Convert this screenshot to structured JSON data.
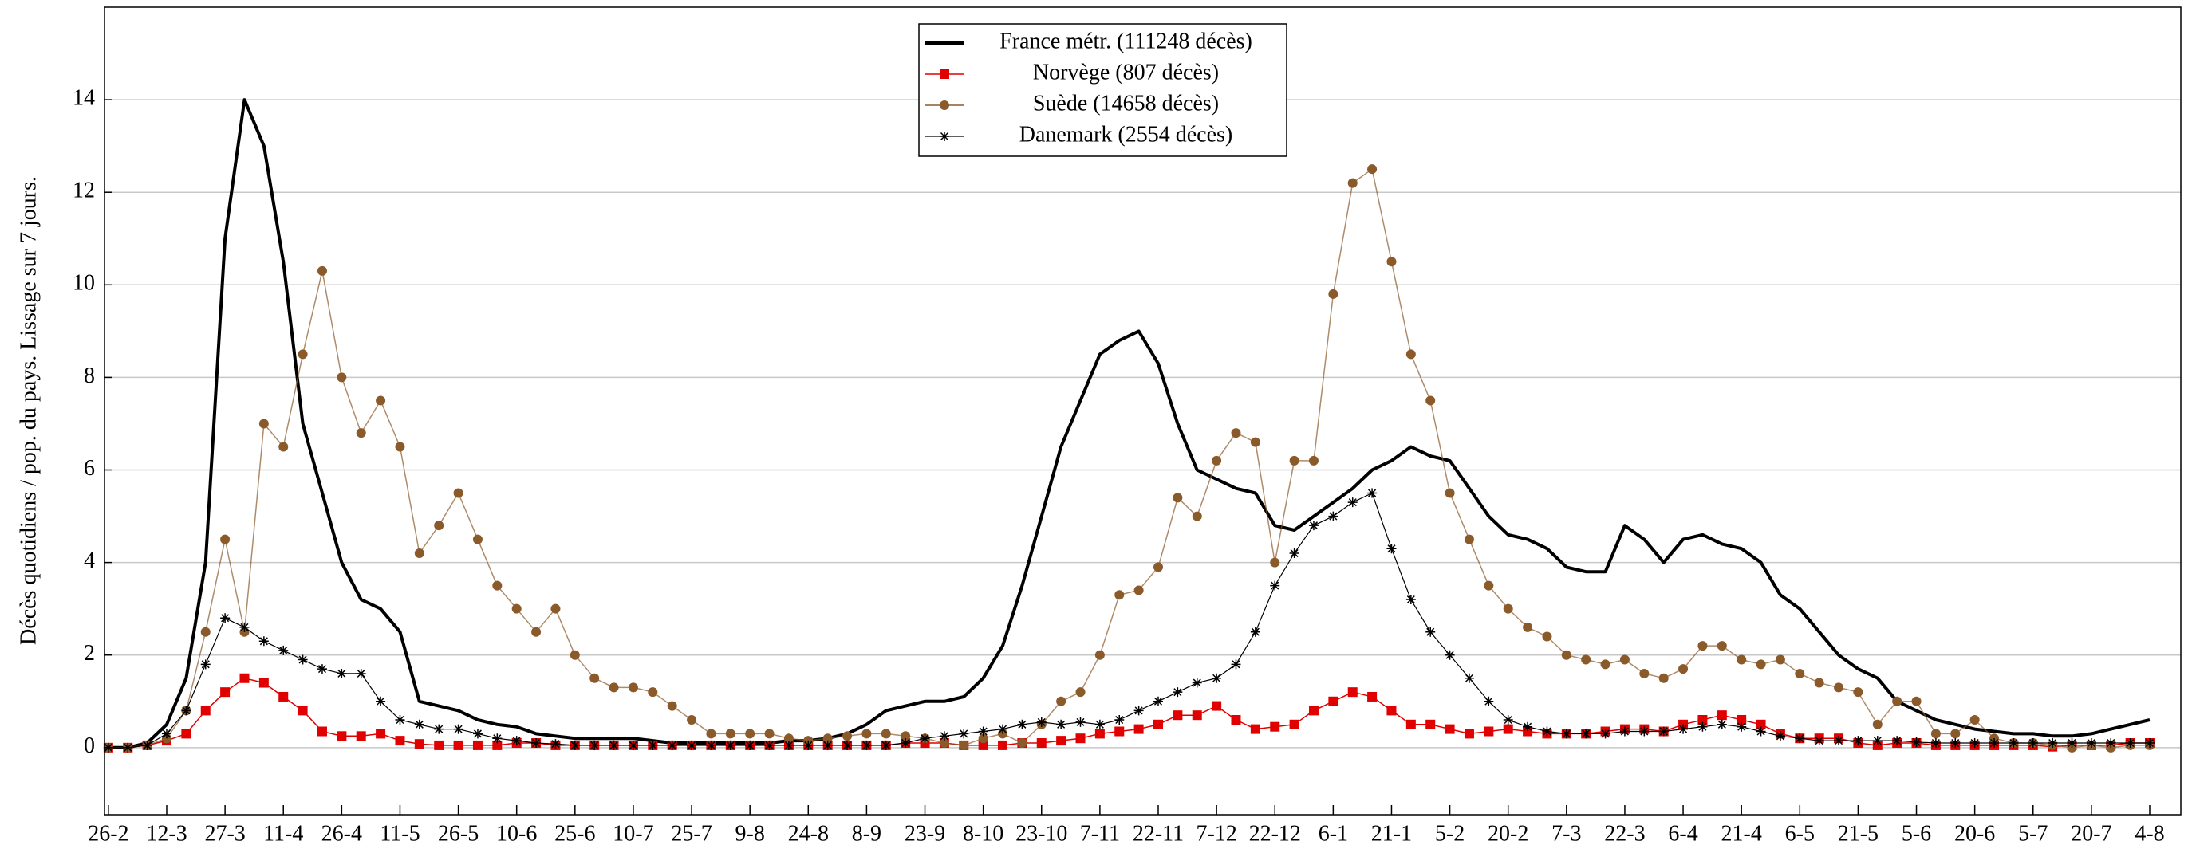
{
  "chart_data": {
    "type": "line",
    "y_label": "Décès quotidiens / pop. du pays. Lissage sur 7 jours.",
    "xlim": [
      -1,
      533
    ],
    "ylim": [
      -1.45,
      16
    ],
    "yticks": [
      0,
      2,
      4,
      6,
      8,
      10,
      12,
      14
    ],
    "xticks": [
      {
        "value": 0,
        "label": "26-2"
      },
      {
        "value": 15,
        "label": "12-3"
      },
      {
        "value": 30,
        "label": "27-3"
      },
      {
        "value": 45,
        "label": "11-4"
      },
      {
        "value": 60,
        "label": "26-4"
      },
      {
        "value": 75,
        "label": "11-5"
      },
      {
        "value": 90,
        "label": "26-5"
      },
      {
        "value": 105,
        "label": "10-6"
      },
      {
        "value": 120,
        "label": "25-6"
      },
      {
        "value": 135,
        "label": "10-7"
      },
      {
        "value": 150,
        "label": "25-7"
      },
      {
        "value": 165,
        "label": "9-8"
      },
      {
        "value": 180,
        "label": "24-8"
      },
      {
        "value": 195,
        "label": "8-9"
      },
      {
        "value": 210,
        "label": "23-9"
      },
      {
        "value": 225,
        "label": "8-10"
      },
      {
        "value": 240,
        "label": "23-10"
      },
      {
        "value": 255,
        "label": "7-11"
      },
      {
        "value": 270,
        "label": "22-11"
      },
      {
        "value": 285,
        "label": "7-12"
      },
      {
        "value": 300,
        "label": "22-12"
      },
      {
        "value": 315,
        "label": "6-1"
      },
      {
        "value": 330,
        "label": "21-1"
      },
      {
        "value": 345,
        "label": "5-2"
      },
      {
        "value": 360,
        "label": "20-2"
      },
      {
        "value": 375,
        "label": "7-3"
      },
      {
        "value": 390,
        "label": "22-3"
      },
      {
        "value": 405,
        "label": "6-4"
      },
      {
        "value": 420,
        "label": "21-4"
      },
      {
        "value": 435,
        "label": "6-5"
      },
      {
        "value": 450,
        "label": "21-5"
      },
      {
        "value": 465,
        "label": "5-6"
      },
      {
        "value": 480,
        "label": "20-6"
      },
      {
        "value": 495,
        "label": "5-7"
      },
      {
        "value": 510,
        "label": "20-7"
      },
      {
        "value": 525,
        "label": "4-8"
      }
    ],
    "grid": true,
    "legend_position": "top center",
    "x": [
      0,
      5,
      10,
      15,
      20,
      25,
      30,
      35,
      40,
      45,
      50,
      55,
      60,
      65,
      70,
      75,
      80,
      85,
      90,
      95,
      100,
      105,
      110,
      115,
      120,
      125,
      130,
      135,
      140,
      145,
      150,
      155,
      160,
      165,
      170,
      175,
      180,
      185,
      190,
      195,
      200,
      205,
      210,
      215,
      220,
      225,
      230,
      235,
      240,
      245,
      250,
      255,
      260,
      265,
      270,
      275,
      280,
      285,
      290,
      295,
      300,
      305,
      310,
      315,
      320,
      325,
      330,
      335,
      340,
      345,
      350,
      355,
      360,
      365,
      370,
      375,
      380,
      385,
      390,
      395,
      400,
      405,
      410,
      415,
      420,
      425,
      430,
      435,
      440,
      445,
      450,
      455,
      460,
      465,
      470,
      475,
      480,
      485,
      490,
      495,
      500,
      505,
      510,
      515,
      520,
      525
    ],
    "series": [
      {
        "name": "France métr. (111248 décès)",
        "color": "#000000",
        "marker": "none",
        "line_width": 4,
        "values": [
          0,
          0,
          0.1,
          0.5,
          1.5,
          4,
          11,
          14,
          13,
          10.5,
          7,
          5.5,
          4,
          3.2,
          3,
          2.5,
          1,
          0.9,
          0.8,
          0.6,
          0.5,
          0.45,
          0.3,
          0.25,
          0.2,
          0.2,
          0.2,
          0.2,
          0.15,
          0.1,
          0.1,
          0.1,
          0.1,
          0.1,
          0.1,
          0.15,
          0.15,
          0.2,
          0.3,
          0.5,
          0.8,
          0.9,
          1,
          1,
          1.1,
          1.5,
          2.2,
          3.5,
          5,
          6.5,
          7.5,
          8.5,
          8.8,
          9,
          8.3,
          7,
          6,
          5.8,
          5.6,
          5.5,
          4.8,
          4.7,
          5,
          5.3,
          5.6,
          6,
          6.2,
          6.5,
          6.3,
          6.2,
          5.6,
          5,
          4.6,
          4.5,
          4.3,
          3.9,
          3.8,
          3.8,
          4.8,
          4.5,
          4,
          4.5,
          4.6,
          4.4,
          4.3,
          4,
          3.3,
          3,
          2.5,
          2,
          1.7,
          1.5,
          1,
          0.8,
          0.6,
          0.5,
          0.4,
          0.35,
          0.3,
          0.3,
          0.25,
          0.25,
          0.3,
          0.4,
          0.5,
          0.6
        ]
      },
      {
        "name": "Norvège (807 décès)",
        "color": "#e00000",
        "marker": "square",
        "line_width": 1.5,
        "values": [
          0,
          0,
          0.05,
          0.15,
          0.3,
          0.8,
          1.2,
          1.5,
          1.4,
          1.1,
          0.8,
          0.35,
          0.25,
          0.25,
          0.3,
          0.15,
          0.08,
          0.05,
          0.05,
          0.05,
          0.05,
          0.1,
          0.1,
          0.05,
          0.05,
          0.05,
          0.05,
          0.05,
          0.05,
          0.05,
          0.05,
          0.05,
          0.05,
          0.05,
          0.05,
          0.05,
          0.05,
          0.05,
          0.05,
          0.05,
          0.05,
          0.1,
          0.1,
          0.1,
          0.05,
          0.05,
          0.05,
          0.1,
          0.1,
          0.15,
          0.2,
          0.3,
          0.35,
          0.4,
          0.5,
          0.7,
          0.7,
          0.9,
          0.6,
          0.4,
          0.45,
          0.5,
          0.8,
          1,
          1.2,
          1.1,
          0.8,
          0.5,
          0.5,
          0.4,
          0.3,
          0.35,
          0.4,
          0.35,
          0.3,
          0.3,
          0.3,
          0.35,
          0.4,
          0.4,
          0.35,
          0.5,
          0.6,
          0.7,
          0.6,
          0.5,
          0.3,
          0.2,
          0.2,
          0.2,
          0.1,
          0.05,
          0.1,
          0.1,
          0.05,
          0.05,
          0.05,
          0.05,
          0.05,
          0.05,
          0.02,
          0.05,
          0.05,
          0.05,
          0.1,
          0.1
        ]
      },
      {
        "name": "Suède (14658 décès)",
        "color": "#8b5a2b",
        "marker": "circle",
        "line_width": 1.5,
        "values": [
          0,
          0,
          0.05,
          0.2,
          0.8,
          2.5,
          4.5,
          2.5,
          7,
          6.5,
          8.5,
          10.3,
          8,
          6.8,
          7.5,
          6.5,
          4.2,
          4.8,
          5.5,
          4.5,
          3.5,
          3,
          2.5,
          3,
          2,
          1.5,
          1.3,
          1.3,
          1.2,
          0.9,
          0.6,
          0.3,
          0.3,
          0.3,
          0.3,
          0.2,
          0.15,
          0.2,
          0.25,
          0.3,
          0.3,
          0.25,
          0.2,
          0.1,
          0.05,
          0.2,
          0.3,
          0.1,
          0.5,
          1,
          1.2,
          2,
          3.3,
          3.4,
          3.9,
          5.4,
          5,
          6.2,
          6.8,
          6.6,
          4,
          6.2,
          6.2,
          9.8,
          12.2,
          12.5,
          10.5,
          8.5,
          7.5,
          5.5,
          4.5,
          3.5,
          3,
          2.6,
          2.4,
          2,
          1.9,
          1.8,
          1.9,
          1.6,
          1.5,
          1.7,
          2.2,
          2.2,
          1.9,
          1.8,
          1.9,
          1.6,
          1.4,
          1.3,
          1.2,
          0.5,
          1,
          1,
          0.3,
          0.3,
          0.6,
          0.2,
          0.1,
          0.1,
          0.05,
          0,
          0.05,
          0,
          0.05,
          0.05
        ]
      },
      {
        "name": "Danemark (2554 décès)",
        "color": "#000000",
        "marker": "star",
        "line_width": 1.2,
        "values": [
          0,
          0,
          0.05,
          0.3,
          0.8,
          1.8,
          2.8,
          2.6,
          2.3,
          2.1,
          1.9,
          1.7,
          1.6,
          1.6,
          1,
          0.6,
          0.5,
          0.4,
          0.4,
          0.3,
          0.2,
          0.15,
          0.1,
          0.08,
          0.05,
          0.05,
          0.05,
          0.05,
          0.05,
          0.05,
          0.05,
          0.05,
          0.05,
          0.05,
          0.05,
          0.05,
          0.05,
          0.05,
          0.05,
          0.05,
          0.05,
          0.1,
          0.2,
          0.25,
          0.3,
          0.35,
          0.4,
          0.5,
          0.55,
          0.5,
          0.55,
          0.5,
          0.6,
          0.8,
          1,
          1.2,
          1.4,
          1.5,
          1.8,
          2.5,
          3.5,
          4.2,
          4.8,
          5,
          5.3,
          5.5,
          4.3,
          3.2,
          2.5,
          2,
          1.5,
          1,
          0.6,
          0.45,
          0.35,
          0.3,
          0.3,
          0.3,
          0.35,
          0.35,
          0.35,
          0.4,
          0.45,
          0.5,
          0.45,
          0.35,
          0.25,
          0.2,
          0.15,
          0.15,
          0.15,
          0.15,
          0.15,
          0.12,
          0.1,
          0.1,
          0.1,
          0.1,
          0.1,
          0.1,
          0.1,
          0.1,
          0.1,
          0.1,
          0.1,
          0.1
        ]
      }
    ]
  }
}
